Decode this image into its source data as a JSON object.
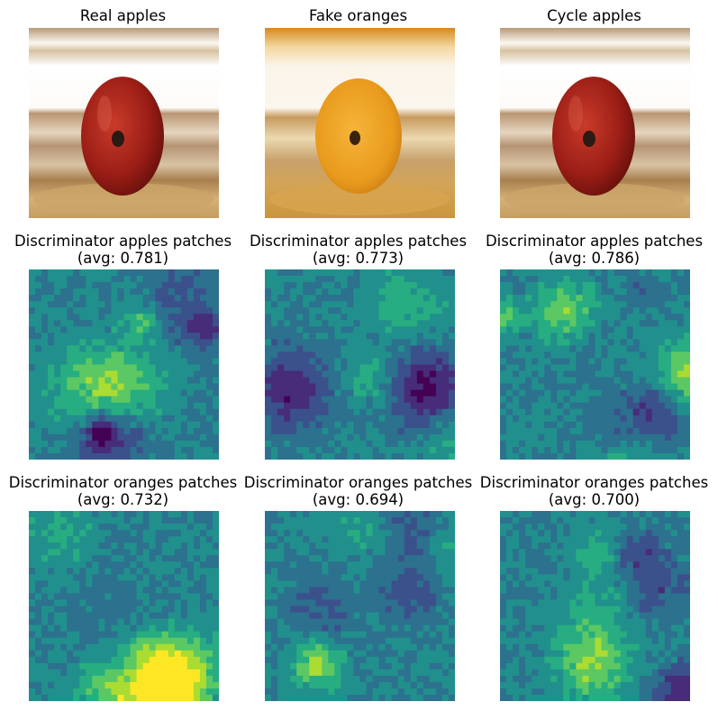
{
  "titles": {
    "real_apples": "Real apples",
    "fake_oranges": "Fake oranges",
    "cycle_apples": "Cycle apples",
    "disc_apples_label": "Discriminator apples patches",
    "disc_oranges_label": "Discriminator oranges patches",
    "avg_real_apples_apples": "(avg: 0.781)",
    "avg_fake_oranges_apples": "(avg: 0.773)",
    "avg_cycle_apples_apples": "(avg: 0.786)",
    "avg_real_apples_oranges": "(avg: 0.732)",
    "avg_fake_oranges_oranges": "(avg: 0.694)",
    "avg_cycle_apples_oranges": "(avg: 0.700)"
  },
  "colormap": "viridis",
  "colors": {
    "apple_red": "#9c1e16",
    "orange": "#e89a1c",
    "table_wood": "#c9a46a",
    "background_light": "#f5f2ec"
  }
}
